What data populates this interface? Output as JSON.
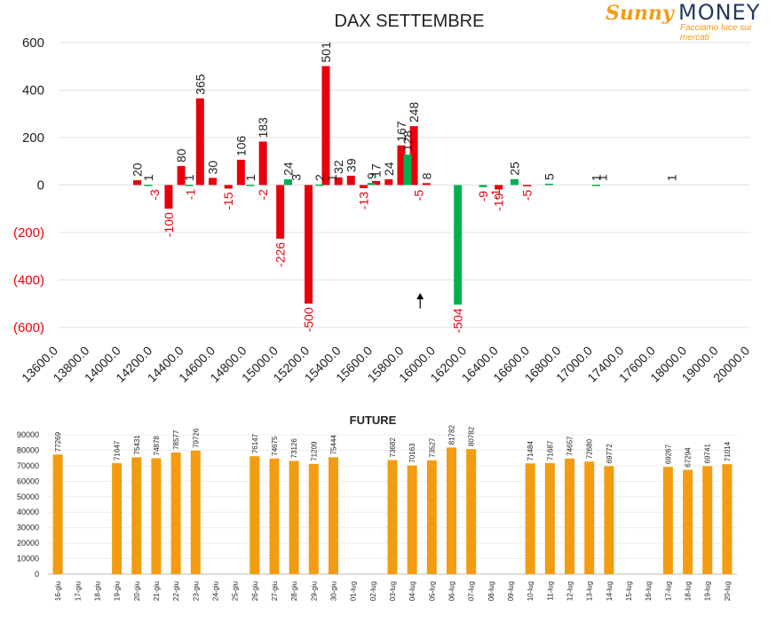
{
  "brand": {
    "logo_word1": "Sunny",
    "logo_word2": "MONEY",
    "tagline": "Facciamo luce sui mercati",
    "colors": {
      "orange": "#f39c12",
      "navy": "#1f3a5f"
    }
  },
  "chart_data": [
    {
      "type": "bar",
      "title": "DAX SETTEMBRE",
      "xlabel": "",
      "ylabel": "",
      "ylim": [
        -600,
        600
      ],
      "y_ticks": [
        "600",
        "400",
        "200",
        "0",
        "(200)",
        "(400)",
        "(600)"
      ],
      "negative_tick_color": "#e8000b",
      "categories": [
        "13600.0",
        "13800.0",
        "14000.0",
        "14200.0",
        "14400.0",
        "14600.0",
        "14800.0",
        "15000.0",
        "15200.0",
        "15400.0",
        "15600.0",
        "15800.0",
        "16000.0",
        "16200.0",
        "16400.0",
        "16600.0",
        "16800.0",
        "17000.0",
        "17400.0",
        "17600.0",
        "18000.0",
        "19000.0",
        "20000.0"
      ],
      "series": [
        {
          "color": "#e8000b",
          "values": [
            {
              "x": 2.5,
              "y": 20,
              "label": "20"
            },
            {
              "x": 3.5,
              "y": -100,
              "label": "-100"
            },
            {
              "x": 3.9,
              "y": 80,
              "label": "80"
            },
            {
              "x": 4.5,
              "y": 365,
              "label": "365"
            },
            {
              "x": 4.9,
              "y": 30,
              "label": "30"
            },
            {
              "x": 5.4,
              "y": -15,
              "label": "-15"
            },
            {
              "x": 5.8,
              "y": 106,
              "label": "106"
            },
            {
              "x": 6.5,
              "y": 183,
              "label": "183"
            },
            {
              "x": 7.05,
              "y": -226,
              "label": "-226"
            },
            {
              "x": 7.95,
              "y": -500,
              "label": "-500"
            },
            {
              "x": 8.5,
              "y": 501,
              "label": "501"
            },
            {
              "x": 8.9,
              "y": 32,
              "label": "32"
            },
            {
              "x": 9.3,
              "y": 39,
              "label": "39"
            },
            {
              "x": 9.7,
              "y": -13,
              "label": "-13"
            },
            {
              "x": 10.1,
              "y": 17,
              "label": "17"
            },
            {
              "x": 10.5,
              "y": 24,
              "label": "24"
            },
            {
              "x": 10.9,
              "y": 167,
              "label": "167"
            },
            {
              "x": 11.3,
              "y": 248,
              "label": "248"
            },
            {
              "x": 11.7,
              "y": 8,
              "label": "8"
            },
            {
              "x": 14.0,
              "y": -19,
              "label": "-19"
            },
            {
              "x": 14.9,
              "y": -5,
              "label": "-5"
            }
          ]
        },
        {
          "color": "#00b050",
          "values": [
            {
              "x": 2.85,
              "y": 1,
              "label": "1"
            },
            {
              "x": 4.15,
              "y": 1,
              "label": "1"
            },
            {
              "x": 6.1,
              "y": 1,
              "label": "1"
            },
            {
              "x": 7.3,
              "y": 24,
              "label": "24"
            },
            {
              "x": 8.3,
              "y": 2,
              "label": "2"
            },
            {
              "x": 9.95,
              "y": 9,
              "label": "9"
            },
            {
              "x": 11.1,
              "y": 128,
              "label": "128"
            },
            {
              "x": 12.7,
              "y": -504,
              "label": "-504"
            },
            {
              "x": 13.5,
              "y": -9,
              "label": "-9"
            },
            {
              "x": 14.5,
              "y": 25,
              "label": "25"
            },
            {
              "x": 15.6,
              "y": 5,
              "label": "5"
            },
            {
              "x": 17.1,
              "y": 1,
              "label": "1"
            }
          ]
        }
      ],
      "extra_labels": [
        {
          "x": 3.05,
          "y": -3,
          "label": "-3"
        },
        {
          "x": 4.2,
          "y": -1,
          "label": "-1"
        },
        {
          "x": 6.5,
          "y": -2,
          "label": "-2"
        },
        {
          "x": 7.55,
          "y": 3,
          "label": "3"
        },
        {
          "x": 8.7,
          "y": 1,
          "label": "1"
        },
        {
          "x": 11.45,
          "y": -5,
          "label": "-5"
        },
        {
          "x": 13.9,
          "y": -1,
          "label": "-1"
        },
        {
          "x": 17.3,
          "y": 1,
          "label": "1"
        },
        {
          "x": 19.5,
          "y": 1,
          "label": "1"
        }
      ],
      "annotations": [
        {
          "type": "arrow",
          "x": 11.5,
          "from_y": -520,
          "to_y": -455
        }
      ]
    },
    {
      "type": "bar",
      "title": "FUTURE",
      "xlabel": "",
      "ylabel": "",
      "ylim": [
        0,
        90000
      ],
      "y_ticks": [
        0,
        10000,
        20000,
        30000,
        40000,
        50000,
        60000,
        70000,
        80000,
        90000
      ],
      "color": "#f39c12",
      "categories": [
        "16-giu",
        "17-giu",
        "18-giu",
        "19-giu",
        "20-giu",
        "21-giu",
        "22-giu",
        "23-giu",
        "24-giu",
        "25-giu",
        "26-giu",
        "27-giu",
        "28-giu",
        "29-giu",
        "30-giu",
        "01-lug",
        "02-lug",
        "03-lug",
        "04-lug",
        "05-lug",
        "06-lug",
        "07-lug",
        "08-lug",
        "09-lug",
        "10-lug",
        "11-lug",
        "12-lug",
        "13-lug",
        "14-lug",
        "15-lug",
        "16-lug",
        "17-lug",
        "18-lug",
        "19-lug",
        "20-lug"
      ],
      "values": [
        77269,
        null,
        null,
        71647,
        75431,
        74878,
        78577,
        79726,
        null,
        null,
        76147,
        74675,
        73126,
        71209,
        75444,
        null,
        null,
        73682,
        70163,
        73527,
        81782,
        80782,
        null,
        null,
        71484,
        71687,
        74657,
        72680,
        69772,
        null,
        null,
        69267,
        67294,
        69741,
        71014
      ]
    }
  ]
}
